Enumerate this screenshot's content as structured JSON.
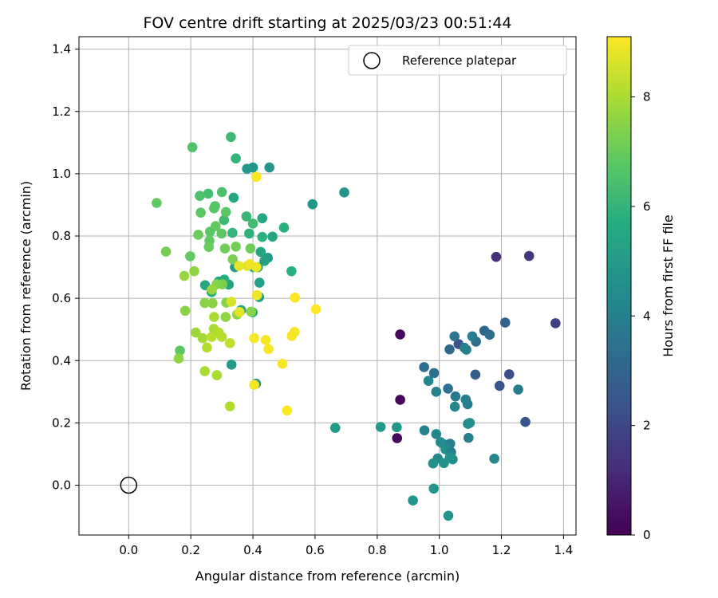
{
  "chart_data": {
    "type": "scatter",
    "title": "FOV centre drift starting at 2025/03/23 00:51:44",
    "xlabel": "Angular distance from reference (arcmin)",
    "ylabel": "Rotation from reference (arcmin)",
    "xlim": [
      -0.16,
      1.44
    ],
    "ylim": [
      -0.16,
      1.44
    ],
    "xticks": [
      0.0,
      0.2,
      0.4,
      0.6,
      0.8,
      1.0,
      1.2,
      1.4
    ],
    "yticks": [
      0.0,
      0.2,
      0.4,
      0.6,
      0.8,
      1.0,
      1.2,
      1.4
    ],
    "grid": true,
    "legend": {
      "placement": "top-right",
      "entries": [
        "Reference platepar"
      ]
    },
    "reference_point": {
      "name": "Reference platepar",
      "x": 0.0,
      "y": 0.0
    },
    "colorbar": {
      "label": "Hours from first FF file",
      "colormap": "viridis",
      "range": [
        0,
        9.1
      ],
      "ticks": [
        0,
        2,
        4,
        6,
        8
      ]
    },
    "series": [
      {
        "name": "",
        "points": [
          [
            0.874,
            0.484,
            0.2
          ],
          [
            0.874,
            0.274,
            0.2
          ],
          [
            0.864,
            0.151,
            0.2
          ],
          [
            1.183,
            0.733,
            1.3
          ],
          [
            1.289,
            0.736,
            1.5
          ],
          [
            1.374,
            0.52,
            1.8
          ],
          [
            1.062,
            0.453,
            2.3
          ],
          [
            1.194,
            0.319,
            2.4
          ],
          [
            1.225,
            0.356,
            2.2
          ],
          [
            1.277,
            0.203,
            2.5
          ],
          [
            1.212,
            0.522,
            2.9
          ],
          [
            1.116,
            0.355,
            2.8
          ],
          [
            1.145,
            0.496,
            3.1
          ],
          [
            1.162,
            0.483,
            3.3
          ],
          [
            1.118,
            0.461,
            3.3
          ],
          [
            1.033,
            0.436,
            3.2
          ],
          [
            1.049,
            0.478,
            3.6
          ],
          [
            1.081,
            0.441,
            3.9
          ],
          [
            1.106,
            0.478,
            3.9
          ],
          [
            1.087,
            0.435,
            4.0
          ],
          [
            1.254,
            0.307,
            3.8
          ],
          [
            1.177,
            0.085,
            4.2
          ],
          [
            0.951,
            0.379,
            3.4
          ],
          [
            0.983,
            0.36,
            3.4
          ],
          [
            0.965,
            0.335,
            4.2
          ],
          [
            1.028,
            0.31,
            3.4
          ],
          [
            1.052,
            0.285,
            3.7
          ],
          [
            1.085,
            0.275,
            4.0
          ],
          [
            1.05,
            0.252,
            4.2
          ],
          [
            1.091,
            0.26,
            3.9
          ],
          [
            0.99,
            0.3,
            4.1
          ],
          [
            1.092,
            0.197,
            4.3
          ],
          [
            1.098,
            0.2,
            4.5
          ],
          [
            1.094,
            0.152,
            4.0
          ],
          [
            0.952,
            0.176,
            4.1
          ],
          [
            0.99,
            0.164,
            4.2
          ],
          [
            1.004,
            0.138,
            4.3
          ],
          [
            1.013,
            0.132,
            4.4
          ],
          [
            1.035,
            0.133,
            4.0
          ],
          [
            1.02,
            0.115,
            4.5
          ],
          [
            1.038,
            0.106,
            4.0
          ],
          [
            1.043,
            0.083,
            4.4
          ],
          [
            1.034,
            0.09,
            4.6
          ],
          [
            0.995,
            0.086,
            4.2
          ],
          [
            0.98,
            0.07,
            4.6
          ],
          [
            1.015,
            0.071,
            4.7
          ],
          [
            0.982,
            -0.011,
            4.8
          ],
          [
            0.915,
            -0.049,
            4.8
          ],
          [
            1.029,
            -0.098,
            4.7
          ],
          [
            0.863,
            0.186,
            4.8
          ],
          [
            0.811,
            0.187,
            4.9
          ],
          [
            0.665,
            0.184,
            4.9
          ],
          [
            0.592,
            0.902,
            4.8
          ],
          [
            0.694,
            0.94,
            4.8
          ],
          [
            0.4,
            1.02,
            4.8
          ],
          [
            0.453,
            1.02,
            4.8
          ],
          [
            0.381,
            1.016,
            4.9
          ],
          [
            0.41,
            0.326,
            4.8
          ],
          [
            0.331,
            0.387,
            4.9
          ],
          [
            0.42,
            0.604,
            5.2
          ],
          [
            0.448,
            0.73,
            5.0
          ],
          [
            0.416,
            0.7,
            5.3
          ],
          [
            0.322,
            0.644,
            5.2
          ],
          [
            0.342,
            0.7,
            5.0
          ],
          [
            0.421,
            0.65,
            5.2
          ],
          [
            0.425,
            0.749,
            5.4
          ],
          [
            0.437,
            0.72,
            5.3
          ],
          [
            0.463,
            0.798,
            5.4
          ],
          [
            0.43,
            0.857,
            5.5
          ],
          [
            0.338,
            0.923,
            5.5
          ],
          [
            0.362,
            0.562,
            5.4
          ],
          [
            0.399,
            0.555,
            5.6
          ],
          [
            0.246,
            0.642,
            5.5
          ],
          [
            0.267,
            0.62,
            5.6
          ],
          [
            0.29,
            0.654,
            5.6
          ],
          [
            0.308,
            0.66,
            5.7
          ],
          [
            0.401,
            0.7,
            5.7
          ],
          [
            0.43,
            0.797,
            5.8
          ],
          [
            0.5,
            0.827,
            5.8
          ],
          [
            0.524,
            0.687,
            5.8
          ],
          [
            0.388,
            0.808,
            5.9
          ],
          [
            0.334,
            0.81,
            6.0
          ],
          [
            0.345,
            1.049,
            6.0
          ],
          [
            0.329,
            1.118,
            6.2
          ],
          [
            0.379,
            0.863,
            6.1
          ],
          [
            0.307,
            0.851,
            6.2
          ],
          [
            0.4,
            0.84,
            6.3
          ],
          [
            0.256,
            0.936,
            6.4
          ],
          [
            0.3,
            0.941,
            6.5
          ],
          [
            0.229,
            0.929,
            6.5
          ],
          [
            0.205,
            1.085,
            6.6
          ],
          [
            0.278,
            0.896,
            6.6
          ],
          [
            0.275,
            0.889,
            6.7
          ],
          [
            0.313,
            0.877,
            6.8
          ],
          [
            0.232,
            0.875,
            6.8
          ],
          [
            0.299,
            0.808,
            6.8
          ],
          [
            0.28,
            0.832,
            6.9
          ],
          [
            0.262,
            0.814,
            6.8
          ],
          [
            0.26,
            0.785,
            6.9
          ],
          [
            0.258,
            0.765,
            7.0
          ],
          [
            0.224,
            0.804,
            7.0
          ],
          [
            0.198,
            0.735,
            6.9
          ],
          [
            0.31,
            0.76,
            7.1
          ],
          [
            0.392,
            0.76,
            7.1
          ],
          [
            0.345,
            0.766,
            7.2
          ],
          [
            0.335,
            0.725,
            7.3
          ],
          [
            0.302,
            0.645,
            7.3
          ],
          [
            0.283,
            0.645,
            7.4
          ],
          [
            0.314,
            0.586,
            7.4
          ],
          [
            0.27,
            0.584,
            7.5
          ],
          [
            0.245,
            0.585,
            7.5
          ],
          [
            0.312,
            0.54,
            7.6
          ],
          [
            0.349,
            0.548,
            7.6
          ],
          [
            0.394,
            0.557,
            7.5
          ],
          [
            0.182,
            0.56,
            7.5
          ],
          [
            0.211,
            0.687,
            7.6
          ],
          [
            0.179,
            0.672,
            7.7
          ],
          [
            0.268,
            0.628,
            7.7
          ],
          [
            0.09,
            0.906,
            6.9
          ],
          [
            0.12,
            0.75,
            7.2
          ],
          [
            0.165,
            0.432,
            6.8
          ],
          [
            0.161,
            0.407,
            7.6
          ],
          [
            0.216,
            0.49,
            7.8
          ],
          [
            0.238,
            0.472,
            7.9
          ],
          [
            0.275,
            0.54,
            8.0
          ],
          [
            0.274,
            0.502,
            8.0
          ],
          [
            0.29,
            0.49,
            8.1
          ],
          [
            0.3,
            0.476,
            8.2
          ],
          [
            0.326,
            0.456,
            8.3
          ],
          [
            0.267,
            0.476,
            8.2
          ],
          [
            0.252,
            0.442,
            8.1
          ],
          [
            0.245,
            0.366,
            8.0
          ],
          [
            0.284,
            0.353,
            8.0
          ],
          [
            0.326,
            0.253,
            8.1
          ],
          [
            0.382,
            0.704,
            8.7
          ],
          [
            0.39,
            0.71,
            8.9
          ],
          [
            0.411,
            0.7,
            8.9
          ],
          [
            0.355,
            0.704,
            8.8
          ],
          [
            0.33,
            0.589,
            8.6
          ],
          [
            0.357,
            0.556,
            8.8
          ],
          [
            0.413,
            0.61,
            8.9
          ],
          [
            0.404,
            0.472,
            9.0
          ],
          [
            0.441,
            0.466,
            9.0
          ],
          [
            0.45,
            0.437,
            9.0
          ],
          [
            0.404,
            0.322,
            9.0
          ],
          [
            0.495,
            0.39,
            9.0
          ],
          [
            0.51,
            0.24,
            9.1
          ],
          [
            0.525,
            0.479,
            9.0
          ],
          [
            0.534,
            0.492,
            9.0
          ],
          [
            0.535,
            0.602,
            9.1
          ],
          [
            0.603,
            0.565,
            9.1
          ],
          [
            0.411,
            0.99,
            9.1
          ]
        ]
      }
    ]
  }
}
